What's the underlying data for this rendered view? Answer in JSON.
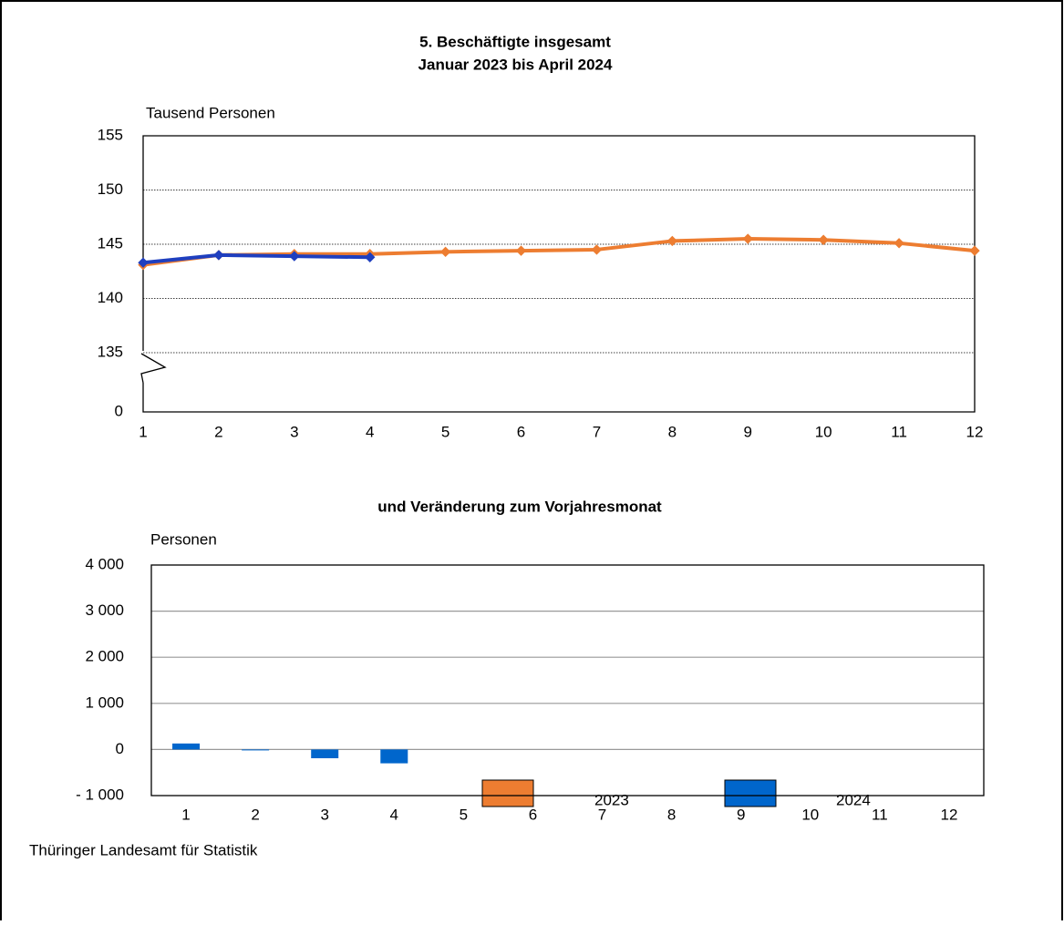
{
  "chart_data": [
    {
      "type": "line",
      "title": "5. Beschäftigte insgesamt",
      "subtitle": "Januar 2023 bis April 2024",
      "y_label": "Tausend Personen",
      "x": [
        1,
        2,
        3,
        4,
        5,
        6,
        7,
        8,
        9,
        10,
        11,
        12
      ],
      "xlim": [
        1,
        12
      ],
      "xticks": [
        1,
        2,
        3,
        4,
        5,
        6,
        7,
        8,
        9,
        10,
        11,
        12
      ],
      "ylim": [
        0,
        155
      ],
      "yticks": [
        0,
        135,
        140,
        145,
        150,
        155
      ],
      "broken_axis": true,
      "grid": true,
      "series": [
        {
          "name": "2023",
          "color": "#ED7D31",
          "values": [
            143.1,
            144.0,
            144.1,
            144.1,
            144.3,
            144.4,
            144.5,
            145.3,
            145.5,
            145.4,
            145.1,
            144.4
          ]
        },
        {
          "name": "2024",
          "color": "#1F3FBF",
          "values": [
            143.3,
            144.0,
            143.9,
            143.8,
            null,
            null,
            null,
            null,
            null,
            null,
            null,
            null
          ]
        }
      ]
    },
    {
      "type": "bar",
      "title": "und Veränderung zum Vorjahresmonat",
      "y_label": "Personen",
      "categories": [
        1,
        2,
        3,
        4,
        5,
        6,
        7,
        8,
        9,
        10,
        11,
        12
      ],
      "ylim": [
        -1000,
        4000
      ],
      "yticks": [
        {
          "value": -1000,
          "label": "- 1 000"
        },
        0,
        {
          "value": 1000,
          "label": "1 000"
        },
        {
          "value": 2000,
          "label": "2 000"
        },
        {
          "value": 3000,
          "label": "3 000"
        },
        {
          "value": 4000,
          "label": "4 000"
        }
      ],
      "grid": true,
      "series": [
        {
          "color": "#0066CC",
          "values": [
            130,
            -20,
            -190,
            -300,
            null,
            null,
            null,
            null,
            null,
            null,
            null,
            null
          ]
        }
      ]
    }
  ],
  "source": "Thüringer Landesamt für Statistik"
}
